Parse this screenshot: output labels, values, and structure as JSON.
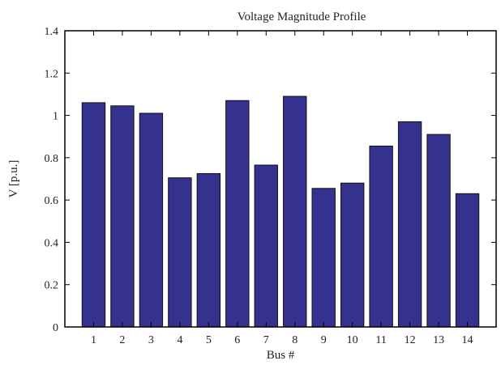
{
  "chart_data": {
    "type": "bar",
    "title": "Voltage Magnitude Profile",
    "xlabel": "Bus #",
    "ylabel": "V [p.u.]",
    "categories": [
      "1",
      "2",
      "3",
      "4",
      "5",
      "6",
      "7",
      "8",
      "9",
      "10",
      "11",
      "12",
      "13",
      "14"
    ],
    "values": [
      1.06,
      1.045,
      1.01,
      0.705,
      0.725,
      1.07,
      0.765,
      1.09,
      0.655,
      0.68,
      0.855,
      0.97,
      0.91,
      0.63
    ],
    "ylim": [
      0,
      1.4
    ],
    "yticks": [
      "0",
      "0.2",
      "0.4",
      "0.6",
      "0.8",
      "1",
      "1.2",
      "1.4"
    ],
    "grid": false,
    "legend": "none",
    "bar_color": "#35318f",
    "bar_edge_color": "#111111"
  }
}
